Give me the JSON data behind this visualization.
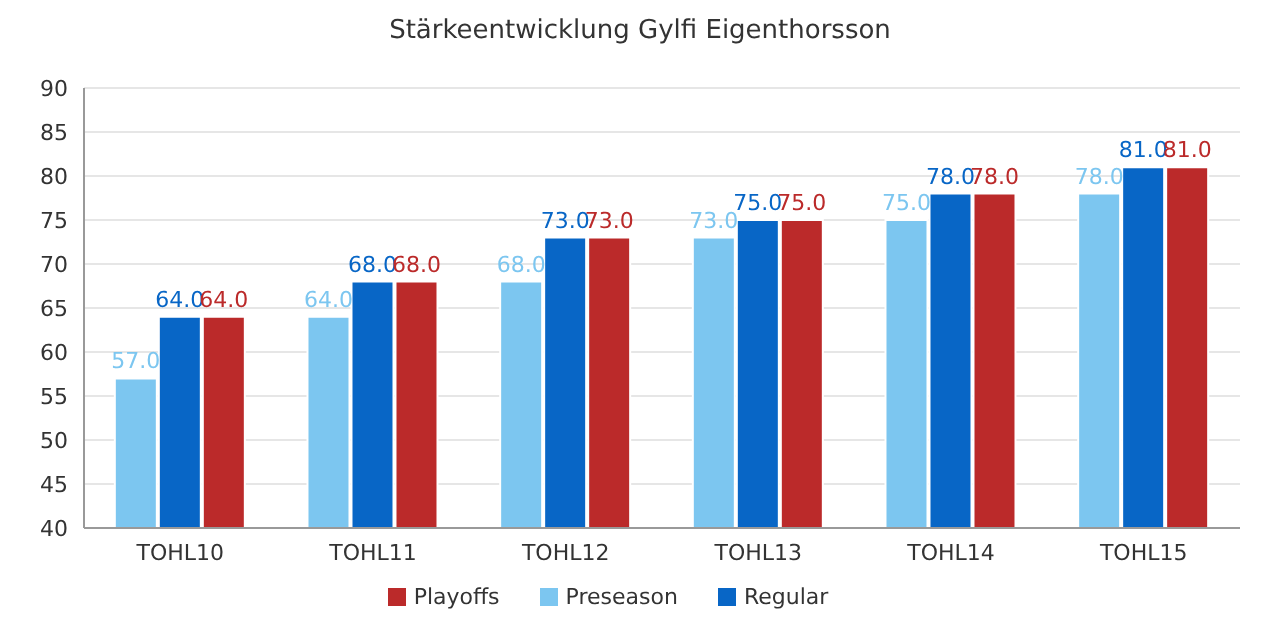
{
  "chart_data": {
    "type": "bar",
    "title": "Stärkeentwicklung Gylfi Eigenthorsson",
    "categories": [
      "TOHL10",
      "TOHL11",
      "TOHL12",
      "TOHL13",
      "TOHL14",
      "TOHL15"
    ],
    "series": [
      {
        "name": "Preseason",
        "color": "#7cc6f0",
        "values": [
          57,
          64,
          68,
          73,
          75,
          78
        ],
        "value_labels": [
          "57.0",
          "64.0",
          "68.0",
          "73.0",
          "75.0",
          "78.0"
        ]
      },
      {
        "name": "Regular",
        "color": "#0866c6",
        "values": [
          64,
          68,
          73,
          75,
          78,
          81
        ],
        "value_labels": [
          "64.0",
          "68.0",
          "73.0",
          "75.0",
          "78.0",
          "81.0"
        ]
      },
      {
        "name": "Playoffs",
        "color": "#bb2a2a",
        "values": [
          64,
          68,
          73,
          75,
          78,
          81
        ],
        "value_labels": [
          "64.0",
          "68.0",
          "73.0",
          "75.0",
          "78.0",
          "81.0"
        ]
      }
    ],
    "ylim": [
      40,
      90
    ],
    "yticks": [
      40,
      45,
      50,
      55,
      60,
      65,
      70,
      75,
      80,
      85,
      90
    ],
    "grid": "y",
    "legend": "bottom"
  }
}
